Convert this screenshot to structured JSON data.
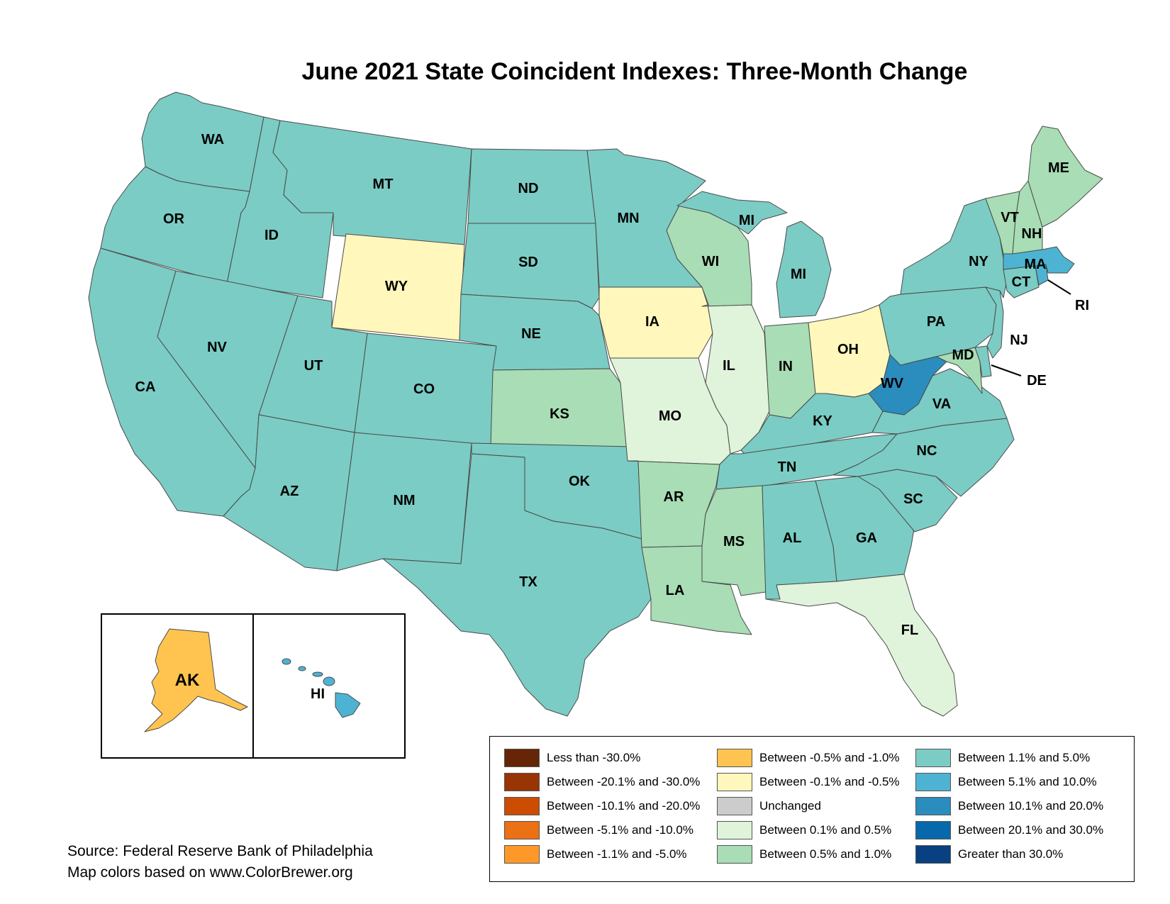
{
  "title": "June 2021 State Coincident Indexes: Three-Month Change",
  "legend": [
    {
      "label": "Less than -30.0%",
      "color": "#662506"
    },
    {
      "label": "Between -20.1% and -30.0%",
      "color": "#993404"
    },
    {
      "label": "Between -10.1% and -20.0%",
      "color": "#cc4c02"
    },
    {
      "label": "Between -5.1% and -10.0%",
      "color": "#ec7014"
    },
    {
      "label": "Between -1.1% and -5.0%",
      "color": "#fe9929"
    },
    {
      "label": "Between -0.5% and -1.0%",
      "color": "#fec44f"
    },
    {
      "label": "Between -0.1% and -0.5%",
      "color": "#fff7bc"
    },
    {
      "label": "Unchanged",
      "color": "#cccccc"
    },
    {
      "label": "Between 0.1% and 0.5%",
      "color": "#e0f3db"
    },
    {
      "label": "Between 0.5% and 1.0%",
      "color": "#a8ddb5"
    },
    {
      "label": "Between 1.1% and 5.0%",
      "color": "#7bccc4"
    },
    {
      "label": "Between 5.1% and 10.0%",
      "color": "#4eb3d3"
    },
    {
      "label": "Between 10.1% and 20.0%",
      "color": "#2b8cbe"
    },
    {
      "label": "Between 20.1% and 30.0%",
      "color": "#0868ac"
    },
    {
      "label": "Greater than 30.0%",
      "color": "#084081"
    }
  ],
  "states": {
    "WA": "Between 1.1% and 5.0%",
    "OR": "Between 1.1% and 5.0%",
    "CA": "Between 1.1% and 5.0%",
    "ID": "Between 1.1% and 5.0%",
    "NV": "Between 1.1% and 5.0%",
    "MT": "Between 1.1% and 5.0%",
    "WY": "Between -0.1% and -0.5%",
    "UT": "Between 1.1% and 5.0%",
    "AZ": "Between 1.1% and 5.0%",
    "CO": "Between 1.1% and 5.0%",
    "NM": "Between 1.1% and 5.0%",
    "ND": "Between 1.1% and 5.0%",
    "SD": "Between 1.1% and 5.0%",
    "NE": "Between 1.1% and 5.0%",
    "KS": "Between 0.5% and 1.0%",
    "OK": "Between 1.1% and 5.0%",
    "TX": "Between 1.1% and 5.0%",
    "MN": "Between 1.1% and 5.0%",
    "IA": "Between -0.1% and -0.5%",
    "MO": "Between 0.1% and 0.5%",
    "AR": "Between 0.5% and 1.0%",
    "LA": "Between 0.5% and 1.0%",
    "WI": "Between 0.5% and 1.0%",
    "IL": "Between 0.1% and 0.5%",
    "MI": "Between 1.1% and 5.0%",
    "IN": "Between 0.5% and 1.0%",
    "OH": "Between -0.1% and -0.5%",
    "KY": "Between 1.1% and 5.0%",
    "TN": "Between 1.1% and 5.0%",
    "MS": "Between 0.5% and 1.0%",
    "AL": "Between 1.1% and 5.0%",
    "GA": "Between 1.1% and 5.0%",
    "FL": "Between 0.1% and 0.5%",
    "SC": "Between 1.1% and 5.0%",
    "NC": "Between 1.1% and 5.0%",
    "VA": "Between 1.1% and 5.0%",
    "WV": "Between 10.1% and 20.0%",
    "MD": "Between 0.5% and 1.0%",
    "DE": "Between 1.1% and 5.0%",
    "PA": "Between 1.1% and 5.0%",
    "NJ": "Between 1.1% and 5.0%",
    "NY": "Between 1.1% and 5.0%",
    "CT": "Between 1.1% and 5.0%",
    "RI": "Between 5.1% and 10.0%",
    "MA": "Between 5.1% and 10.0%",
    "VT": "Between 0.5% and 1.0%",
    "NH": "Between 0.5% and 1.0%",
    "ME": "Between 0.5% and 1.0%",
    "AK": "Between -0.5% and -1.0%",
    "HI": "Between 5.1% and 10.0%"
  },
  "source": {
    "line1": "Source: Federal Reserve Bank of Philadelphia",
    "line2": "Map colors based on www.ColorBrewer.org"
  }
}
